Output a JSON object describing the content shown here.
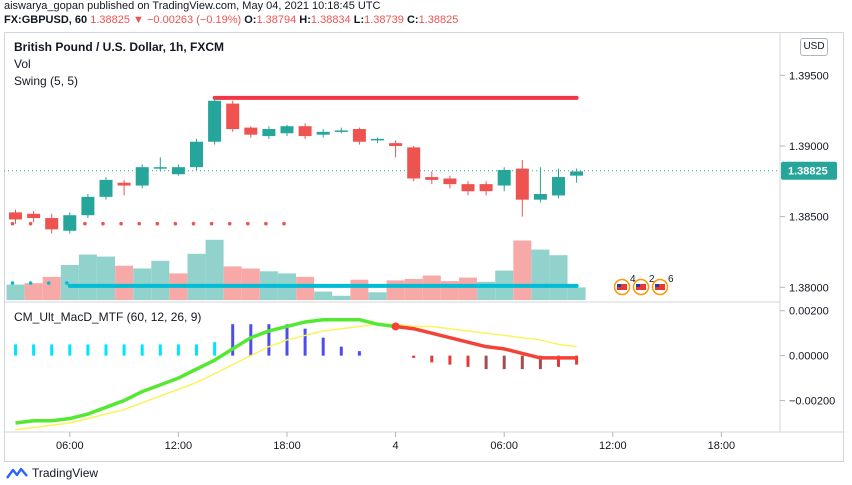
{
  "header": {
    "line1": "aiswarya_gopan published on TradingView.com, May 04, 2021 10:18:45 UTC",
    "symbol": "FX:GBPUSD, 60",
    "last": "1.38825",
    "arrow": "▼",
    "change": "−0.00263 (−0.19%)",
    "o_label": "O:",
    "o_val": "1.38794",
    "h_label": "H:",
    "h_val": "1.38834",
    "l_label": "L:",
    "l_val": "1.38739",
    "c_label": "C:",
    "c_val": "1.38825"
  },
  "legend": {
    "title": "British Pound / U.S. Dollar, 1h, FXCM",
    "vol": "Vol",
    "swing": "Swing (5, 5)",
    "macd": "CM_Ult_MacD_MTF (60, 12, 26, 9)"
  },
  "currency": "USD",
  "events": [
    "4",
    "2",
    "6"
  ],
  "footer": {
    "brand": "TradingView"
  },
  "colors": {
    "up": "#26a69a",
    "down": "#ef5350",
    "swing": "#00bcd4",
    "resistance": "#f23645",
    "macd_up": "#55e832",
    "macd_down": "#f44336",
    "signal": "#f8f45a"
  },
  "chart_data": {
    "type": "candlestick",
    "price_axis": {
      "ticks": [
        "1.39500",
        "1.39000",
        "1.38500",
        "1.38000"
      ],
      "range": [
        1.3791,
        1.3975
      ],
      "last_price": "1.38825"
    },
    "macd_axis": {
      "ticks": [
        "0.00200",
        "0.00000",
        "−0.00200"
      ],
      "range": [
        -0.0034,
        0.0023
      ]
    },
    "time_axis": {
      "ticks": [
        "06:00",
        "12:00",
        "18:00",
        "4",
        "06:00",
        "12:00",
        "18:00"
      ],
      "tick_index": [
        3,
        9,
        15,
        21,
        27,
        33,
        39
      ]
    },
    "candles": [
      {
        "o": 1.3853,
        "h": 1.3855,
        "l": 1.3845,
        "c": 1.3848
      },
      {
        "o": 1.3852,
        "h": 1.3854,
        "l": 1.3846,
        "c": 1.3849
      },
      {
        "o": 1.3849,
        "h": 1.3852,
        "l": 1.3838,
        "c": 1.3841
      },
      {
        "o": 1.384,
        "h": 1.3853,
        "l": 1.3838,
        "c": 1.3851
      },
      {
        "o": 1.3851,
        "h": 1.3866,
        "l": 1.3849,
        "c": 1.3864
      },
      {
        "o": 1.3864,
        "h": 1.3878,
        "l": 1.3862,
        "c": 1.3876
      },
      {
        "o": 1.3874,
        "h": 1.3876,
        "l": 1.3865,
        "c": 1.3872
      },
      {
        "o": 1.3872,
        "h": 1.3887,
        "l": 1.387,
        "c": 1.3885
      },
      {
        "o": 1.3885,
        "h": 1.3892,
        "l": 1.3882,
        "c": 1.3885
      },
      {
        "o": 1.388,
        "h": 1.3887,
        "l": 1.3879,
        "c": 1.3885
      },
      {
        "o": 1.3885,
        "h": 1.3905,
        "l": 1.3883,
        "c": 1.3903
      },
      {
        "o": 1.3903,
        "h": 1.3934,
        "l": 1.3901,
        "c": 1.3932
      },
      {
        "o": 1.393,
        "h": 1.3932,
        "l": 1.391,
        "c": 1.3912
      },
      {
        "o": 1.3913,
        "h": 1.3914,
        "l": 1.3906,
        "c": 1.3908
      },
      {
        "o": 1.3907,
        "h": 1.3914,
        "l": 1.3905,
        "c": 1.3912
      },
      {
        "o": 1.3909,
        "h": 1.3915,
        "l": 1.3907,
        "c": 1.3914
      },
      {
        "o": 1.3914,
        "h": 1.3916,
        "l": 1.3905,
        "c": 1.3907
      },
      {
        "o": 1.3908,
        "h": 1.3912,
        "l": 1.3906,
        "c": 1.391
      },
      {
        "o": 1.391,
        "h": 1.3913,
        "l": 1.3909,
        "c": 1.3911
      },
      {
        "o": 1.3912,
        "h": 1.3913,
        "l": 1.3901,
        "c": 1.3903
      },
      {
        "o": 1.3904,
        "h": 1.3906,
        "l": 1.3902,
        "c": 1.3905
      },
      {
        "o": 1.3902,
        "h": 1.3904,
        "l": 1.3892,
        "c": 1.39
      },
      {
        "o": 1.3899,
        "h": 1.39,
        "l": 1.3875,
        "c": 1.3877
      },
      {
        "o": 1.3878,
        "h": 1.3882,
        "l": 1.3873,
        "c": 1.3876
      },
      {
        "o": 1.3877,
        "h": 1.3879,
        "l": 1.387,
        "c": 1.3873
      },
      {
        "o": 1.3873,
        "h": 1.3875,
        "l": 1.3865,
        "c": 1.3868
      },
      {
        "o": 1.3873,
        "h": 1.3875,
        "l": 1.3865,
        "c": 1.3868
      },
      {
        "o": 1.3872,
        "h": 1.3885,
        "l": 1.3868,
        "c": 1.3883
      },
      {
        "o": 1.3884,
        "h": 1.389,
        "l": 1.385,
        "c": 1.3862
      },
      {
        "o": 1.3862,
        "h": 1.3885,
        "l": 1.386,
        "c": 1.3866
      },
      {
        "o": 1.3865,
        "h": 1.3884,
        "l": 1.3863,
        "c": 1.3878
      },
      {
        "o": 1.3879,
        "h": 1.3884,
        "l": 1.3874,
        "c": 1.3882
      }
    ],
    "volume": [
      {
        "v": 0.22,
        "d": "up"
      },
      {
        "v": 0.24,
        "d": "down"
      },
      {
        "v": 0.33,
        "d": "down"
      },
      {
        "v": 0.5,
        "d": "up"
      },
      {
        "v": 0.65,
        "d": "up"
      },
      {
        "v": 0.62,
        "d": "up"
      },
      {
        "v": 0.49,
        "d": "down"
      },
      {
        "v": 0.45,
        "d": "up"
      },
      {
        "v": 0.56,
        "d": "up"
      },
      {
        "v": 0.38,
        "d": "down"
      },
      {
        "v": 0.66,
        "d": "up"
      },
      {
        "v": 0.86,
        "d": "up"
      },
      {
        "v": 0.48,
        "d": "down"
      },
      {
        "v": 0.45,
        "d": "down"
      },
      {
        "v": 0.41,
        "d": "up"
      },
      {
        "v": 0.38,
        "d": "up"
      },
      {
        "v": 0.33,
        "d": "down"
      },
      {
        "v": 0.12,
        "d": "up"
      },
      {
        "v": 0.06,
        "d": "up"
      },
      {
        "v": 0.29,
        "d": "down"
      },
      {
        "v": 0.11,
        "d": "up"
      },
      {
        "v": 0.28,
        "d": "down"
      },
      {
        "v": 0.3,
        "d": "down"
      },
      {
        "v": 0.35,
        "d": "down"
      },
      {
        "v": 0.27,
        "d": "down"
      },
      {
        "v": 0.32,
        "d": "down"
      },
      {
        "v": 0.26,
        "d": "up"
      },
      {
        "v": 0.42,
        "d": "up"
      },
      {
        "v": 0.85,
        "d": "down"
      },
      {
        "v": 0.72,
        "d": "up"
      },
      {
        "v": 0.64,
        "d": "up"
      },
      {
        "v": 0.18,
        "d": "up"
      }
    ],
    "swing": {
      "support_level": 1.3801,
      "resistance_level": 1.3934,
      "support_dots": [
        1.3803,
        1.3803,
        1.3803,
        1.3803
      ],
      "resistance_dots": [
        1.3845,
        1.3845,
        1.3845,
        1.3845,
        1.3845,
        1.3845,
        1.3845,
        1.3845,
        1.3845,
        1.3845,
        1.3845,
        1.3845,
        1.3845,
        1.3845,
        1.3845,
        1.3845
      ],
      "support_line_range": [
        3,
        31
      ],
      "resistance_line_range": [
        11,
        31
      ]
    },
    "macd": {
      "line": [
        -0.003,
        -0.0029,
        -0.0029,
        -0.0028,
        -0.0026,
        -0.0023,
        -0.002,
        -0.0016,
        -0.0013,
        -0.001,
        -0.0006,
        -0.0002,
        0.0003,
        0.0008,
        0.0011,
        0.0013,
        0.0015,
        0.0016,
        0.0016,
        0.0016,
        0.0014,
        0.0013,
        0.0012,
        0.001,
        0.0008,
        0.0006,
        0.0004,
        0.0003,
        0.0001,
        -0.0001,
        -0.0001,
        -0.0001
      ],
      "signal": [
        -0.0033,
        -0.0032,
        -0.0031,
        -0.003,
        -0.0028,
        -0.0026,
        -0.0024,
        -0.0021,
        -0.0018,
        -0.0015,
        -0.0012,
        -0.0008,
        -0.0004,
        0.0,
        0.0004,
        0.0007,
        0.0009,
        0.0011,
        0.0012,
        0.0013,
        0.0014,
        0.0014,
        0.0013,
        0.0013,
        0.0012,
        0.0011,
        0.001,
        0.0009,
        0.0008,
        0.0007,
        0.0005,
        0.0004
      ],
      "histogram": [
        0.0005,
        0.0005,
        0.0005,
        0.0005,
        0.0005,
        0.0005,
        0.0005,
        0.0005,
        0.0005,
        0.0005,
        0.0005,
        0.0006,
        0.0014,
        0.0014,
        0.0014,
        0.0014,
        0.0012,
        0.0008,
        0.0004,
        0.0002,
        0,
        0,
        -0.0001,
        -0.0003,
        -0.0004,
        -0.0005,
        -0.0006,
        -0.0006,
        -0.0006,
        -0.0006,
        -0.0005,
        -0.0004
      ],
      "cross_index": 21
    }
  }
}
